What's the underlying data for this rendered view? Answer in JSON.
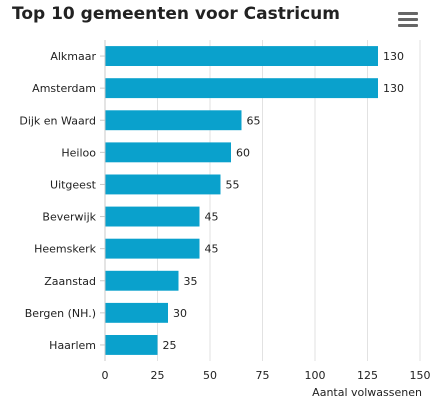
{
  "chart_data": {
    "type": "bar",
    "orientation": "horizontal",
    "title": "Top 10 gemeenten voor Castricum",
    "categories": [
      "Alkmaar",
      "Amsterdam",
      "Dijk en Waard",
      "Heiloo",
      "Uitgeest",
      "Beverwijk",
      "Heemskerk",
      "Zaanstad",
      "Bergen (NH.)",
      "Haarlem"
    ],
    "values": [
      130,
      130,
      65,
      60,
      55,
      45,
      45,
      35,
      30,
      25
    ],
    "xlabel": "Aantal volwassenen",
    "ylabel": "",
    "xlim": [
      0,
      150
    ],
    "xticks": [
      0,
      25,
      50,
      75,
      100,
      125,
      150
    ],
    "grid": "vertical",
    "data_labels": true,
    "legend": "none",
    "bar_color": "#0aa1cc"
  },
  "menu": {
    "icon": "hamburger-menu-icon"
  }
}
